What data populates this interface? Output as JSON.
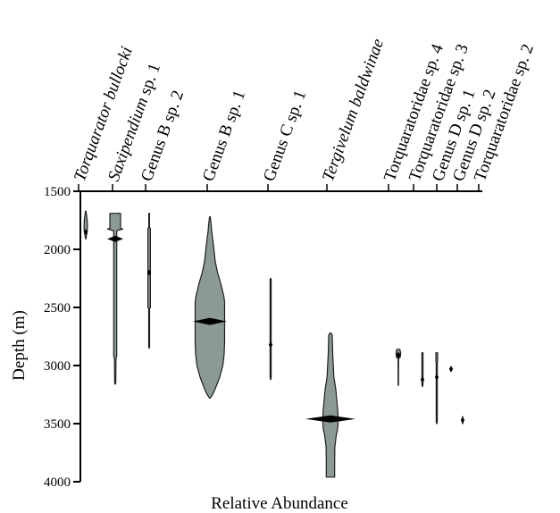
{
  "chart_data": {
    "type": "kite",
    "xlabel": "Relative Abundance",
    "ylabel": "Depth (m)",
    "ylim": [
      1500,
      4000
    ],
    "yticks": [
      1500,
      2000,
      2500,
      3000,
      3500,
      4000
    ],
    "fill_color": "#8c9a94",
    "outline_color": "#1e1e1e",
    "series": [
      {
        "name": "Torquarator bullocki",
        "italic": true,
        "profile": [
          [
            1670,
            0.2
          ],
          [
            1700,
            0.8
          ],
          [
            1750,
            1.6
          ],
          [
            1800,
            1.9
          ],
          [
            1850,
            1.6
          ],
          [
            1880,
            0.8
          ],
          [
            1910,
            0.2
          ]
        ],
        "max_depth": 1850
      },
      {
        "name": "Saxipendium sp. 1",
        "italic": true,
        "italic_part": "Saxipendium",
        "profile": [
          [
            1690,
            6
          ],
          [
            1820,
            6
          ],
          [
            1825,
            8.5
          ],
          [
            1840,
            1.7
          ],
          [
            2000,
            1.7
          ],
          [
            2920,
            1.7
          ],
          [
            2940,
            0.9
          ],
          [
            3150,
            0.6
          ],
          [
            3160,
            0.2
          ]
        ],
        "max_depth": 1910
      },
      {
        "name": "Genus B sp. 2",
        "italic": false,
        "profile": [
          [
            1690,
            0.4
          ],
          [
            1810,
            0.4
          ],
          [
            1820,
            1.4
          ],
          [
            2500,
            1.4
          ],
          [
            2510,
            0.5
          ],
          [
            2840,
            0.5
          ],
          [
            2850,
            0.2
          ]
        ],
        "max_depth": 2200
      },
      {
        "name": "Genus B sp. 1",
        "italic": false,
        "profile": [
          [
            1720,
            0.4
          ],
          [
            1780,
            1.3
          ],
          [
            1850,
            2.1
          ],
          [
            1920,
            3.3
          ],
          [
            2000,
            4.5
          ],
          [
            2100,
            5.9
          ],
          [
            2200,
            8.6
          ],
          [
            2300,
            12.4
          ],
          [
            2400,
            15.5
          ],
          [
            2450,
            16.5
          ],
          [
            2500,
            16.5
          ],
          [
            2800,
            16.5
          ],
          [
            2900,
            16
          ],
          [
            3000,
            14.5
          ],
          [
            3100,
            11
          ],
          [
            3200,
            6
          ],
          [
            3250,
            3
          ],
          [
            3280,
            0.5
          ]
        ],
        "max_depth": 2620
      },
      {
        "name": "Genus C sp. 1",
        "italic": false,
        "profile": [
          [
            2250,
            0.2
          ],
          [
            2260,
            0.6
          ],
          [
            3100,
            0.6
          ],
          [
            3120,
            0.2
          ]
        ],
        "max_depth": 2820
      },
      {
        "name": "Tergivelum baldwinae",
        "italic": true,
        "profile": [
          [
            2720,
            0.5
          ],
          [
            2740,
            2
          ],
          [
            2900,
            2.5
          ],
          [
            3000,
            3.2
          ],
          [
            3100,
            3.8
          ],
          [
            3200,
            5.9
          ],
          [
            3300,
            7.1
          ],
          [
            3400,
            8.3
          ],
          [
            3450,
            8.5
          ],
          [
            3500,
            8.5
          ],
          [
            3550,
            8
          ],
          [
            3600,
            6.5
          ],
          [
            3700,
            4.9
          ],
          [
            3800,
            4.7
          ],
          [
            3900,
            4.7
          ],
          [
            3960,
            4.7
          ]
        ],
        "max_depth": 3460
      },
      {
        "name": "Torquaratoridae sp. 4",
        "italic": false,
        "profile": [
          [
            2860,
            1.6
          ],
          [
            2890,
            2.6
          ],
          [
            2930,
            2
          ],
          [
            2940,
            0.3
          ],
          [
            3170,
            0.2
          ]
        ],
        "max_depth": 2910
      },
      {
        "name": "Torquaratoridae sp. 3",
        "italic": false,
        "profile": [
          [
            2890,
            0.7
          ],
          [
            2900,
            0.6
          ],
          [
            3160,
            0.6
          ],
          [
            3180,
            0.2
          ]
        ],
        "max_depth": 3120
      },
      {
        "name": "Genus D sp. 1",
        "italic": false,
        "profile": [
          [
            2890,
            1
          ],
          [
            2960,
            1
          ],
          [
            2975,
            0.6
          ],
          [
            3480,
            0.6
          ],
          [
            3500,
            0.2
          ]
        ],
        "max_depth": 3100
      },
      {
        "name": "Genus D sp. 2",
        "italic": false,
        "profile": [
          [
            3010,
            0.2
          ],
          [
            3030,
            0.3
          ],
          [
            3050,
            0.2
          ]
        ],
        "max_depth": 3030
      },
      {
        "name": "Torquaratoridae sp. 2",
        "italic": false,
        "profile": [
          [
            3440,
            0.2
          ],
          [
            3470,
            0.6
          ],
          [
            3500,
            0.2
          ]
        ],
        "max_depth": 3470
      }
    ]
  }
}
